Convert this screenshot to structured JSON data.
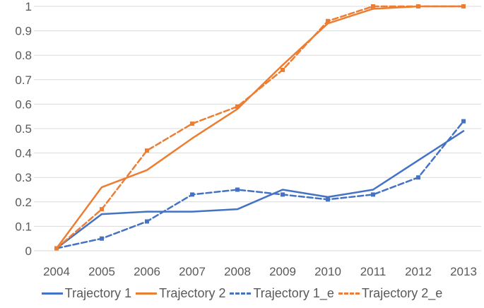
{
  "chart_data": {
    "type": "line",
    "title": "",
    "xlabel": "",
    "ylabel": "",
    "x": [
      "2004",
      "2005",
      "2006",
      "2007",
      "2008",
      "2009",
      "2010",
      "2011",
      "2012",
      "2013"
    ],
    "series": [
      {
        "name": "Trajectory 1",
        "color": "#4472C4",
        "dash": "solid",
        "marker": false,
        "values": [
          0.01,
          0.15,
          0.16,
          0.16,
          0.17,
          0.25,
          0.22,
          0.25,
          0.37,
          0.49
        ]
      },
      {
        "name": "Trajectory 2",
        "color": "#ED7D31",
        "dash": "solid",
        "marker": false,
        "values": [
          0.01,
          0.26,
          0.33,
          0.46,
          0.58,
          0.76,
          0.93,
          0.99,
          1.0,
          1.0
        ]
      },
      {
        "name": "Trajectory 1_e",
        "color": "#4472C4",
        "dash": "dashed",
        "marker": true,
        "values": [
          0.01,
          0.05,
          0.12,
          0.23,
          0.25,
          0.23,
          0.21,
          0.23,
          0.3,
          0.53
        ]
      },
      {
        "name": "Trajectory 2_e",
        "color": "#ED7D31",
        "dash": "dashed",
        "marker": true,
        "values": [
          0.01,
          0.17,
          0.41,
          0.52,
          0.59,
          0.74,
          0.94,
          1.0,
          1.0,
          1.0
        ]
      }
    ],
    "ylim": [
      0,
      1
    ],
    "yticks": [
      0,
      0.1,
      0.2,
      0.3,
      0.4,
      0.5,
      0.6,
      0.7,
      0.8,
      0.9,
      1
    ],
    "ytick_labels": [
      "0",
      "0.1",
      "0.2",
      "0.3",
      "0.4",
      "0.5",
      "0.6",
      "0.7",
      "0.8",
      "0.9",
      "1"
    ],
    "grid": "horizontal",
    "legend_position": "bottom"
  },
  "colors": {
    "background": "#FFFFFF",
    "gridline": "#D9D9D9",
    "axis_text": "#595959",
    "series_blue": "#4472C4",
    "series_orange": "#ED7D31"
  }
}
